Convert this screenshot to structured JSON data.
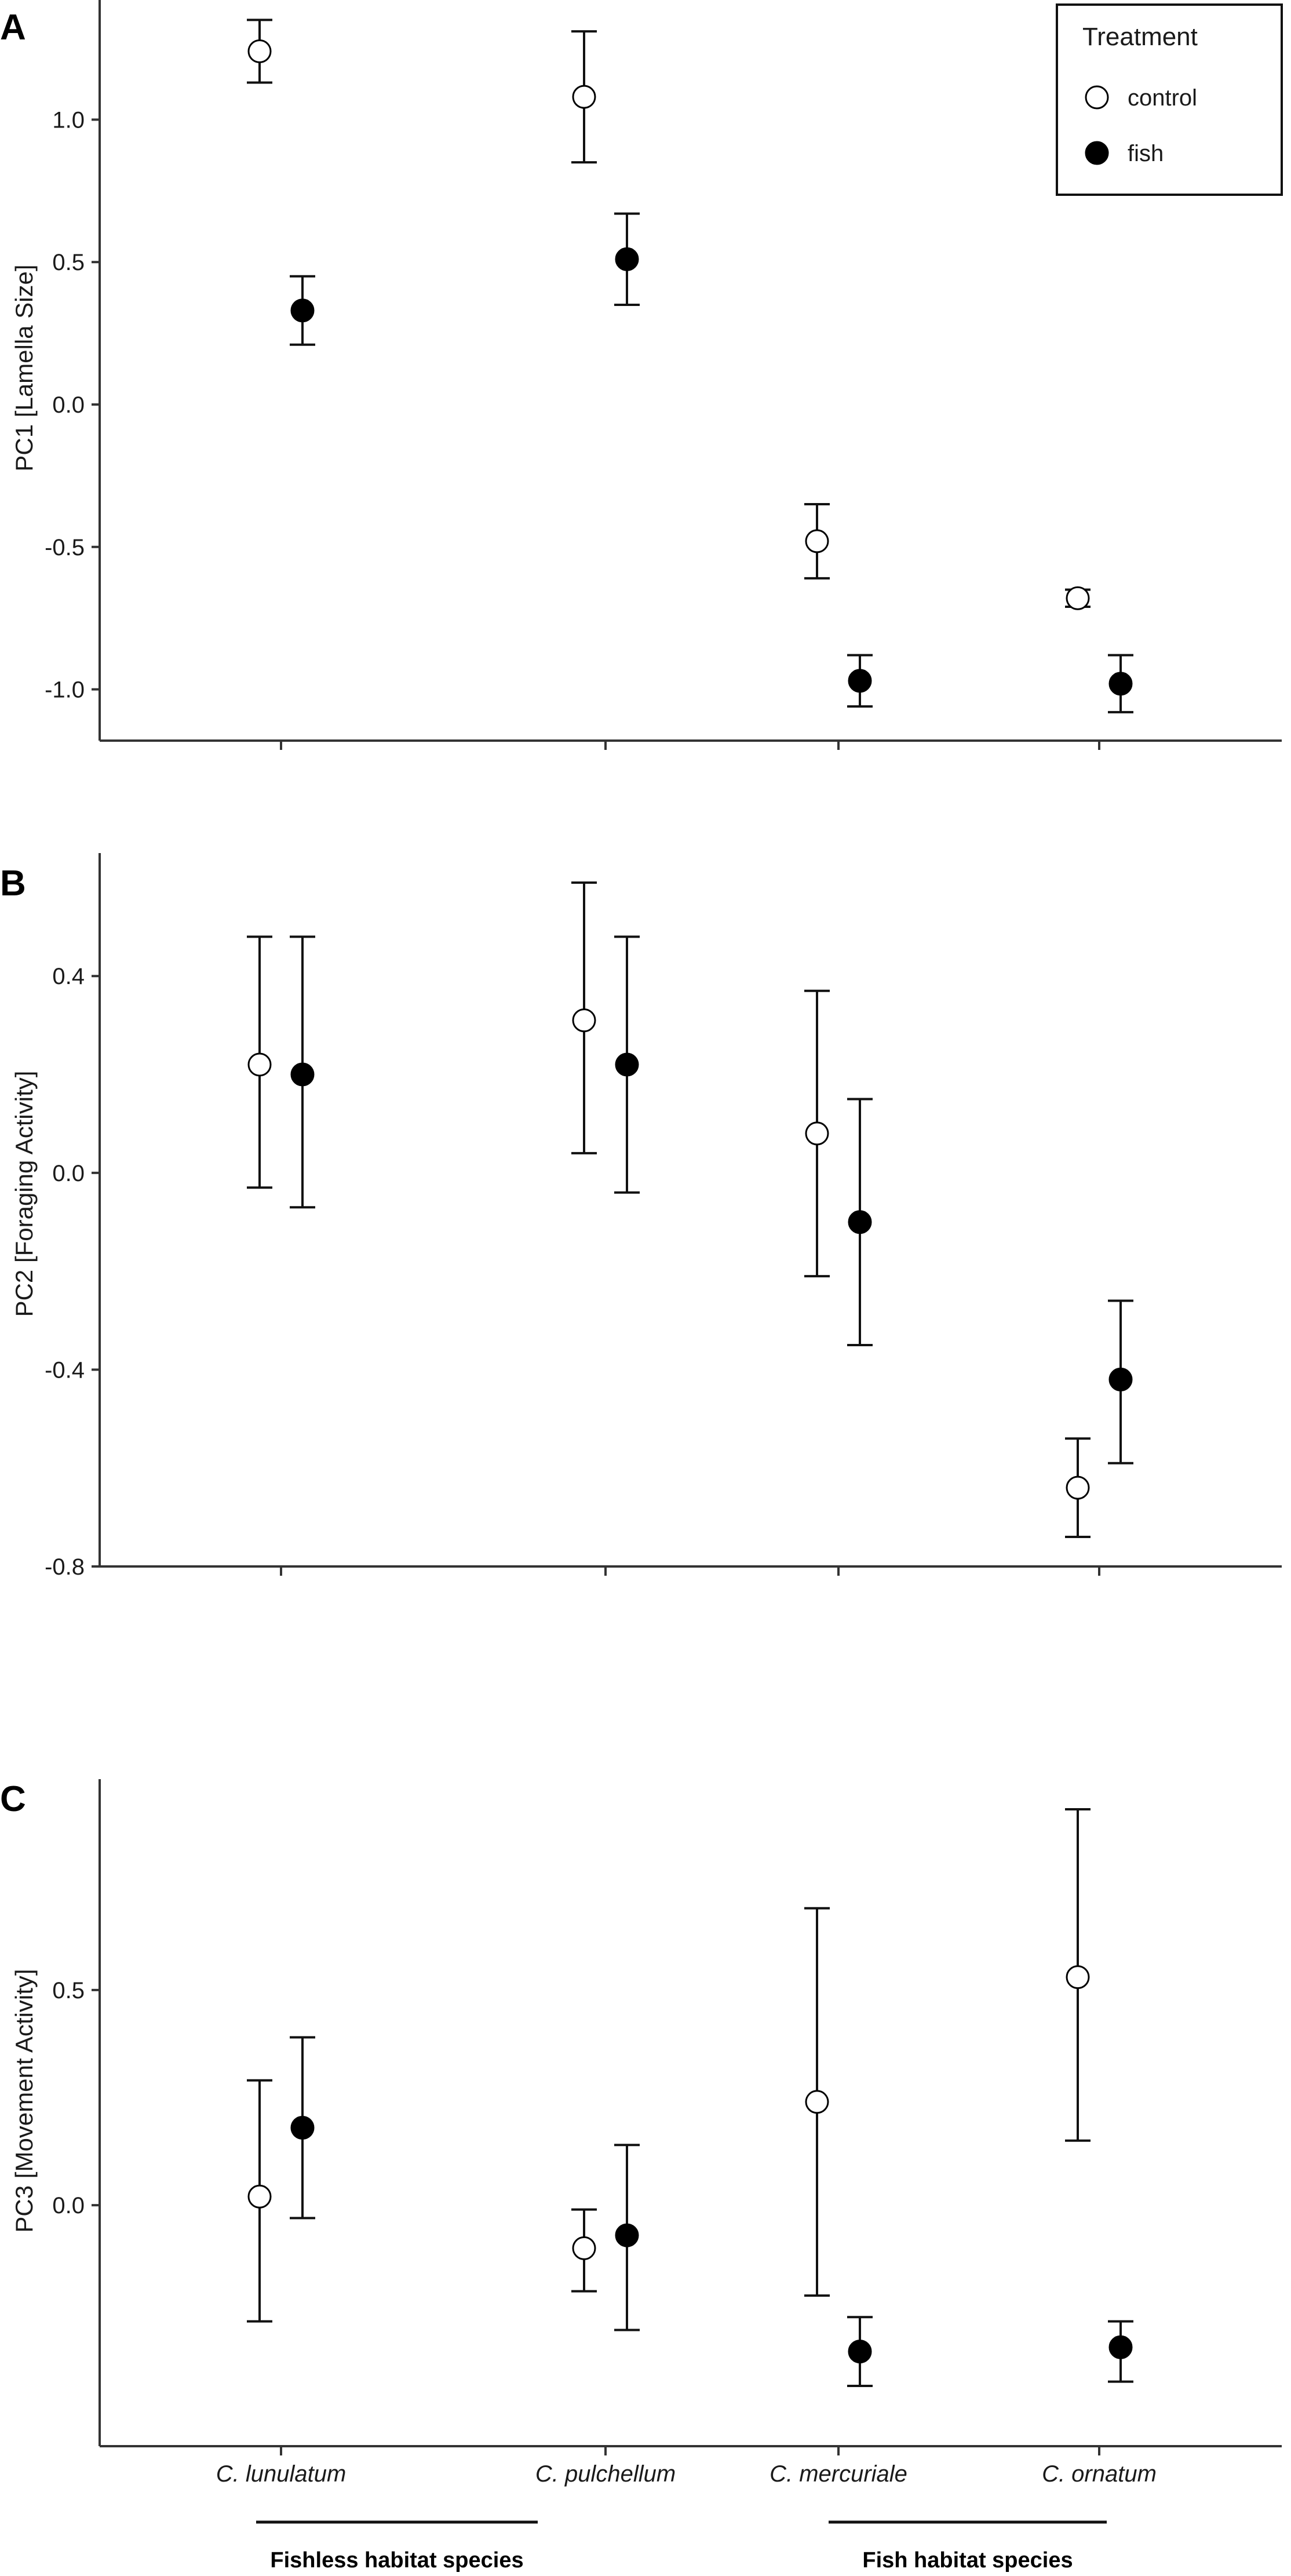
{
  "chart_data": [
    {
      "panel": "A",
      "type": "scatter",
      "ylabel": "PC1 [Lamella Size]",
      "yticks": [
        -1.0,
        -0.5,
        0.0,
        0.5,
        1.0
      ],
      "ytick_labels": [
        "-1.0",
        "-0.5",
        "0.0",
        "0.5",
        "1.0"
      ],
      "ylim": [
        -1.18,
        1.42
      ],
      "categories": [
        "C. lunulatum",
        "C. pulchellum",
        "C. mercuriale",
        "C. ornatum"
      ],
      "series": [
        {
          "name": "control",
          "mean": [
            1.24,
            1.08,
            -0.48,
            -0.68
          ],
          "lower": [
            1.13,
            0.85,
            -0.61,
            -0.71
          ],
          "upper": [
            1.35,
            1.31,
            -0.35,
            -0.65
          ]
        },
        {
          "name": "fish",
          "mean": [
            0.33,
            0.51,
            -0.97,
            -0.98
          ],
          "lower": [
            0.21,
            0.35,
            -1.06,
            -1.08
          ],
          "upper": [
            0.45,
            0.67,
            -0.88,
            -0.88
          ]
        }
      ],
      "legend": {
        "title": "Treatment",
        "entries": [
          "control",
          "fish"
        ],
        "position": "top-right"
      }
    },
    {
      "panel": "B",
      "type": "scatter",
      "ylabel": "PC2 [Foraging Activity]",
      "yticks": [
        -0.8,
        -0.4,
        0.0,
        0.4
      ],
      "ytick_labels": [
        "-0.8",
        "-0.4",
        "0.0",
        "0.4"
      ],
      "ylim": [
        -0.8,
        0.65
      ],
      "categories": [
        "C. lunulatum",
        "C. pulchellum",
        "C. mercuriale",
        "C. ornatum"
      ],
      "series": [
        {
          "name": "control",
          "mean": [
            0.22,
            0.31,
            0.08,
            -0.64
          ],
          "lower": [
            -0.03,
            0.04,
            -0.21,
            -0.74
          ],
          "upper": [
            0.48,
            0.59,
            0.37,
            -0.54
          ]
        },
        {
          "name": "fish",
          "mean": [
            0.2,
            0.22,
            -0.1,
            -0.42
          ],
          "lower": [
            -0.07,
            -0.04,
            -0.35,
            -0.59
          ],
          "upper": [
            0.48,
            0.48,
            0.15,
            -0.26
          ]
        }
      ]
    },
    {
      "panel": "C",
      "type": "scatter",
      "ylabel": "PC3 [Movement Activity]",
      "yticks": [
        0.0,
        0.5
      ],
      "ytick_labels": [
        "0.0",
        "0.5"
      ],
      "ylim": [
        -0.56,
        0.99
      ],
      "categories": [
        "C. lunulatum",
        "C. pulchellum",
        "C. mercuriale",
        "C. ornatum"
      ],
      "series": [
        {
          "name": "control",
          "mean": [
            0.02,
            -0.1,
            0.24,
            0.53
          ],
          "lower": [
            -0.27,
            -0.2,
            -0.21,
            0.15
          ],
          "upper": [
            0.29,
            -0.01,
            0.69,
            0.92
          ]
        },
        {
          "name": "fish",
          "mean": [
            0.18,
            -0.07,
            -0.34,
            -0.33
          ],
          "lower": [
            -0.03,
            -0.29,
            -0.42,
            -0.41
          ],
          "upper": [
            0.39,
            0.14,
            -0.26,
            -0.27
          ]
        }
      ],
      "groups": [
        {
          "label": "Fishless habitat species",
          "span": [
            0,
            1
          ]
        },
        {
          "label": "Fish habitat species",
          "span": [
            2,
            3
          ]
        }
      ]
    }
  ]
}
